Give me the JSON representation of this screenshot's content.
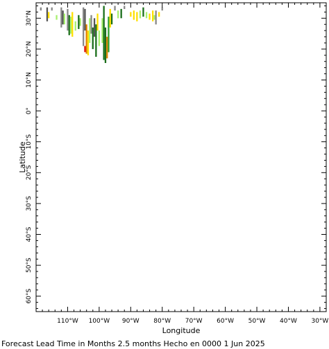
{
  "map": {
    "xlabel": "Longitude",
    "ylabel": "Latitude",
    "caption": "Forecast Lead Time in Months 2.5 months Hecho en 0000 1 Jun 2025",
    "lon_range": [
      -120,
      -28
    ],
    "lat_range": [
      -65,
      35
    ],
    "lon_ticks": [
      {
        "value": -110,
        "label": "110°W"
      },
      {
        "value": -100,
        "label": "100°W"
      },
      {
        "value": -90,
        "label": "90°W"
      },
      {
        "value": -80,
        "label": "80°W"
      },
      {
        "value": -70,
        "label": "70°W"
      },
      {
        "value": -60,
        "label": "60°W"
      },
      {
        "value": -50,
        "label": "50°W"
      },
      {
        "value": -40,
        "label": "40°W"
      },
      {
        "value": -30,
        "label": "30°W"
      }
    ],
    "lat_ticks": [
      {
        "value": 30,
        "label": "30°N"
      },
      {
        "value": 20,
        "label": "20°N"
      },
      {
        "value": 10,
        "label": "10°N"
      },
      {
        "value": 0,
        "label": "0°"
      },
      {
        "value": -10,
        "label": "10°S"
      },
      {
        "value": -20,
        "label": "20°S"
      },
      {
        "value": -30,
        "label": "30°S"
      },
      {
        "value": -40,
        "label": "40°S"
      },
      {
        "value": -50,
        "label": "50°S"
      },
      {
        "value": -60,
        "label": "60°S"
      }
    ],
    "colors": {
      "dark_green": "#1a6e1a",
      "green": "#2e9e2e",
      "light_green": "#a8f070",
      "yellow": "#ffe000",
      "gray": "#888888",
      "dark_gray": "#555555",
      "red": "#e01010",
      "orange": "#e08000"
    },
    "cells": [
      {
        "lon": -118.5,
        "lat_top": 33.5,
        "lat_bot": 32.5,
        "color": "gray"
      },
      {
        "lon": -116.5,
        "lat_top": 33.5,
        "lat_bot": 29.0,
        "color": "dark_gray"
      },
      {
        "lon": -116.0,
        "lat_top": 32.0,
        "lat_bot": 30.0,
        "color": "yellow"
      },
      {
        "lon": -115.0,
        "lat_top": 33.5,
        "lat_bot": 32.5,
        "color": "gray"
      },
      {
        "lon": -113.5,
        "lat_top": 31.0,
        "lat_bot": 29.5,
        "color": "light_green"
      },
      {
        "lon": -112.0,
        "lat_top": 33.5,
        "lat_bot": 27.0,
        "color": "gray"
      },
      {
        "lon": -111.5,
        "lat_top": 32.5,
        "lat_bot": 28.0,
        "color": "dark_gray"
      },
      {
        "lon": -111.0,
        "lat_top": 31.5,
        "lat_bot": 28.0,
        "color": "light_green"
      },
      {
        "lon": -110.0,
        "lat_top": 33.0,
        "lat_bot": 26.0,
        "color": "gray"
      },
      {
        "lon": -109.5,
        "lat_top": 31.0,
        "lat_bot": 24.5,
        "color": "dark_green"
      },
      {
        "lon": -109.0,
        "lat_top": 30.5,
        "lat_bot": 25.0,
        "color": "light_green"
      },
      {
        "lon": -108.5,
        "lat_top": 32.0,
        "lat_bot": 24.0,
        "color": "yellow"
      },
      {
        "lon": -107.5,
        "lat_top": 29.0,
        "lat_bot": 26.0,
        "color": "light_green"
      },
      {
        "lon": -106.5,
        "lat_top": 31.0,
        "lat_bot": 26.5,
        "color": "dark_green"
      },
      {
        "lon": -106.0,
        "lat_top": 30.0,
        "lat_bot": 27.5,
        "color": "light_green"
      },
      {
        "lon": -105.0,
        "lat_top": 33.5,
        "lat_bot": 21.0,
        "color": "gray"
      },
      {
        "lon": -104.5,
        "lat_top": 33.0,
        "lat_bot": 26.0,
        "color": "dark_gray"
      },
      {
        "lon": -104.5,
        "lat_top": 21.0,
        "lat_bot": 19.0,
        "color": "red"
      },
      {
        "lon": -104.0,
        "lat_top": 28.0,
        "lat_bot": 18.5,
        "color": "orange"
      },
      {
        "lon": -103.5,
        "lat_top": 26.0,
        "lat_bot": 18.0,
        "color": "yellow"
      },
      {
        "lon": -103.0,
        "lat_top": 30.0,
        "lat_bot": 22.0,
        "color": "light_green"
      },
      {
        "lon": -102.5,
        "lat_top": 31.0,
        "lat_bot": 25.0,
        "color": "gray"
      },
      {
        "lon": -102.0,
        "lat_top": 27.0,
        "lat_bot": 20.0,
        "color": "dark_green"
      },
      {
        "lon": -101.5,
        "lat_top": 30.0,
        "lat_bot": 24.0,
        "color": "dark_gray"
      },
      {
        "lon": -101.0,
        "lat_top": 28.0,
        "lat_bot": 17.5,
        "color": "dark_green"
      },
      {
        "lon": -100.5,
        "lat_top": 31.5,
        "lat_bot": 26.0,
        "color": "yellow"
      },
      {
        "lon": -100.0,
        "lat_top": 26.0,
        "lat_bot": 21.0,
        "color": "light_green"
      },
      {
        "lon": -99.0,
        "lat_top": 30.0,
        "lat_bot": 22.0,
        "color": "light_green"
      },
      {
        "lon": -98.5,
        "lat_top": 34.0,
        "lat_bot": 16.5,
        "color": "dark_green"
      },
      {
        "lon": -98.0,
        "lat_top": 27.0,
        "lat_bot": 15.5,
        "color": "dark_green"
      },
      {
        "lon": -97.5,
        "lat_top": 24.0,
        "lat_bot": 17.0,
        "color": "orange"
      },
      {
        "lon": -97.0,
        "lat_top": 30.5,
        "lat_bot": 19.0,
        "color": "green"
      },
      {
        "lon": -96.5,
        "lat_top": 33.0,
        "lat_bot": 27.0,
        "color": "yellow"
      },
      {
        "lon": -96.0,
        "lat_top": 31.5,
        "lat_bot": 28.0,
        "color": "dark_green"
      },
      {
        "lon": -95.0,
        "lat_top": 34.0,
        "lat_bot": 32.5,
        "color": "gray"
      },
      {
        "lon": -94.0,
        "lat_top": 32.5,
        "lat_bot": 30.0,
        "color": "light_green"
      },
      {
        "lon": -93.0,
        "lat_top": 33.0,
        "lat_bot": 30.0,
        "color": "dark_green"
      },
      {
        "lon": -92.0,
        "lat_top": 34.0,
        "lat_bot": 33.0,
        "color": "gray"
      },
      {
        "lon": -90.0,
        "lat_top": 32.0,
        "lat_bot": 30.5,
        "color": "yellow"
      },
      {
        "lon": -89.0,
        "lat_top": 32.5,
        "lat_bot": 29.5,
        "color": "yellow"
      },
      {
        "lon": -88.0,
        "lat_top": 32.0,
        "lat_bot": 29.0,
        "color": "yellow"
      },
      {
        "lon": -87.0,
        "lat_top": 32.5,
        "lat_bot": 30.0,
        "color": "light_green"
      },
      {
        "lon": -86.0,
        "lat_top": 33.5,
        "lat_bot": 30.5,
        "color": "dark_green"
      },
      {
        "lon": -85.0,
        "lat_top": 32.0,
        "lat_bot": 30.0,
        "color": "light_green"
      },
      {
        "lon": -84.0,
        "lat_top": 31.5,
        "lat_bot": 29.5,
        "color": "yellow"
      },
      {
        "lon": -83.0,
        "lat_top": 32.5,
        "lat_bot": 29.0,
        "color": "yellow"
      },
      {
        "lon": -82.5,
        "lat_top": 31.0,
        "lat_bot": 29.5,
        "color": "light_green"
      },
      {
        "lon": -82.0,
        "lat_top": 32.5,
        "lat_bot": 28.0,
        "color": "gray"
      },
      {
        "lon": -81.0,
        "lat_top": 32.0,
        "lat_bot": 30.5,
        "color": "yellow"
      },
      {
        "lon": -80.0,
        "lat_top": 33.5,
        "lat_bot": 32.5,
        "color": "gray"
      }
    ]
  }
}
